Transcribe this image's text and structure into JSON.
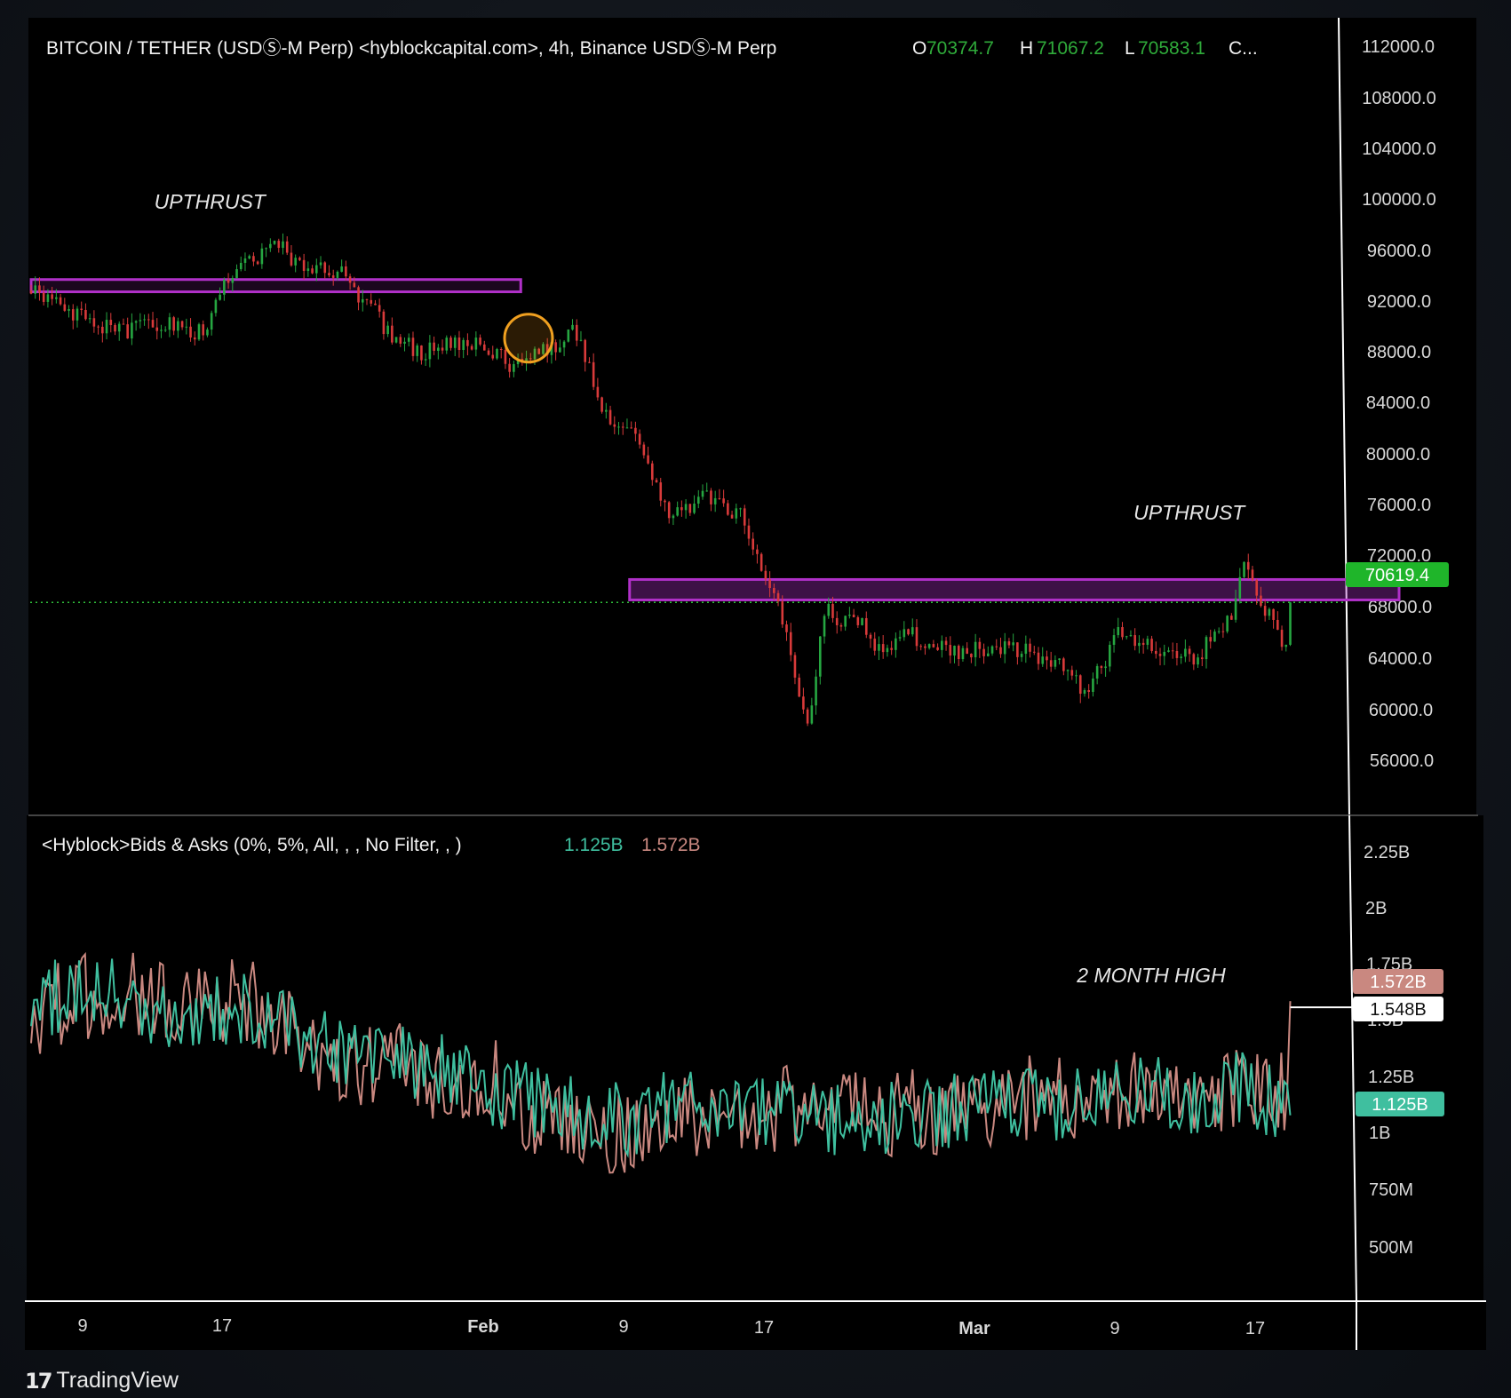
{
  "price_panel": {
    "title": "BITCOIN / TETHER (USDⓈ-M Perp) <hyblockcapital.com>, 4h, Binance USDⓈ-M Perp",
    "open_label": "O",
    "open_value": "70374.7",
    "high_label": "H",
    "high_value": "71067.2",
    "low_label": "L",
    "low_value": "70583.1",
    "close_truncated": "C...",
    "current_price_label": "70619.4"
  },
  "indicator_panel": {
    "title": "<Hyblock>Bids & Asks (0%, 5%, All, , , No Filter, , )",
    "value_1": "1.125B",
    "value_2": "1.572B",
    "badge_asks": "1.572B",
    "badge_high": "1.548B",
    "badge_bids": "1.125B"
  },
  "annotations": {
    "upthrust_left": "UPTHRUST",
    "upthrust_right": "UPTHRUST",
    "two_month_high": "2 MONTH HIGH"
  },
  "footer": {
    "brand": "TradingView"
  },
  "colors": {
    "bull": "#26a641",
    "bear": "#d83a3a",
    "zone": "#b030c8",
    "bids": "#3fbf9f",
    "asks": "#c98880",
    "price_badge": "#1fb52a"
  },
  "chart_data": [
    {
      "type": "candlestick",
      "title": "BITCOIN / TETHER (USDⓈ-M Perp) <hyblockcapital.com>, 4h, Binance USDⓈ-M Perp",
      "x_ticks": [
        "9",
        "17",
        "Feb",
        "9",
        "17",
        "Mar",
        "9",
        "17"
      ],
      "y_ticks": [
        "112000.0",
        "108000.0",
        "104000.0",
        "100000.0",
        "96000.0",
        "92000.0",
        "88000.0",
        "84000.0",
        "80000.0",
        "76000.0",
        "72000.0",
        "68000.0",
        "64000.0",
        "60000.0",
        "56000.0"
      ],
      "ylim": [
        55000,
        113500
      ],
      "x_index_range": [
        0,
        84
      ],
      "path_index": [
        0,
        3,
        6,
        8,
        11,
        13,
        16,
        17,
        19,
        20,
        23,
        25,
        28,
        31,
        33,
        35,
        37,
        39,
        41,
        44,
        46,
        48,
        50,
        51,
        52,
        53,
        54,
        55,
        56,
        57,
        58,
        60,
        62,
        64,
        66,
        68,
        70,
        73,
        75,
        76,
        77,
        78,
        80,
        81
      ],
      "path_price": [
        93500,
        91800,
        90300,
        91000,
        90500,
        95000,
        97000,
        95500,
        95300,
        94800,
        90500,
        89000,
        89800,
        88000,
        89000,
        90500,
        84000,
        83000,
        77000,
        78500,
        76500,
        70500,
        61500,
        70000,
        69500,
        69500,
        68000,
        66500,
        69000,
        68000,
        67500,
        67000,
        67500,
        67000,
        66000,
        64000,
        68500,
        67000,
        66500,
        68000,
        69000,
        73000,
        69000,
        66800
      ],
      "last_price": 70619.4,
      "high_marker": {
        "index": 32,
        "price": 90000
      },
      "resistance_zones": [
        {
          "from_index": 0,
          "to_index": 31.5,
          "low": 93400,
          "high": 94300
        },
        {
          "from_index": 38.5,
          "to_index": 88,
          "low": 70800,
          "high": 72300
        }
      ],
      "annotations": [
        {
          "text": "UPTHRUST",
          "index": 11.5,
          "price": 99500
        },
        {
          "text": "UPTHRUST",
          "index": 74.5,
          "price": 76700
        }
      ]
    },
    {
      "type": "line",
      "title": "<Hyblock>Bids & Asks (0%, 5%, All, , , No Filter, , )",
      "y_ticks": [
        "2.25B",
        "2B",
        "1.75B",
        "1.5B",
        "1.25B",
        "1B",
        "750M",
        "500M"
      ],
      "ylim": [
        0.4,
        2.3
      ],
      "series": [
        {
          "name": "1.125B",
          "color": "#3fbf9f",
          "last": 1.125,
          "base": [
            1.55,
            1.62,
            1.58,
            1.5,
            1.55,
            1.52,
            1.4,
            1.38,
            1.35,
            1.28,
            1.22,
            1.18,
            1.1,
            1.12,
            1.18,
            1.15,
            1.12,
            1.12,
            1.1,
            1.13,
            1.15,
            1.18,
            1.15,
            1.2,
            1.22,
            1.2,
            1.25,
            1.12
          ]
        },
        {
          "name": "1.572B",
          "color": "#c98880",
          "last": 1.572,
          "base": [
            1.52,
            1.58,
            1.62,
            1.55,
            1.58,
            1.55,
            1.35,
            1.3,
            1.32,
            1.25,
            1.25,
            1.1,
            1.02,
            1.08,
            1.12,
            1.12,
            1.15,
            1.15,
            1.12,
            1.14,
            1.12,
            1.2,
            1.18,
            1.22,
            1.2,
            1.18,
            1.25,
            1.2
          ]
        }
      ],
      "two_month_high": 1.548
    }
  ]
}
